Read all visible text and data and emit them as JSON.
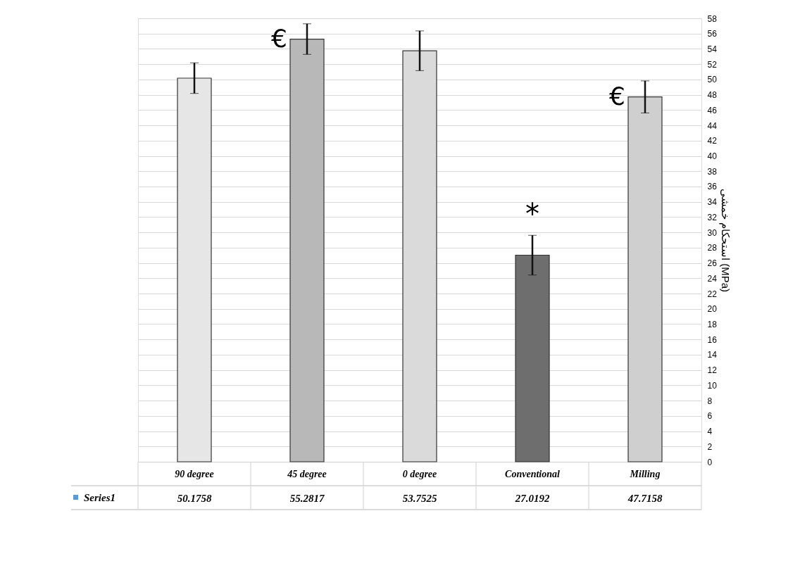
{
  "chart_data": {
    "type": "bar",
    "ylabel": "استحکام خمشی (MPa)",
    "categories": [
      "90 degree",
      "45 degree",
      "0 degree",
      "Conventional",
      "Milling"
    ],
    "series": [
      {
        "name": "Series1",
        "color": "#5b9bd5",
        "colors": [
          "#e6e6e6",
          "#b8b8b8",
          "#dadada",
          "#6e6e6e",
          "#cfcfcf"
        ],
        "values": [
          50.1758,
          55.2817,
          53.7525,
          27.0192,
          47.7158
        ],
        "errors": [
          2.0,
          2.0,
          2.6,
          2.6,
          2.1
        ]
      }
    ],
    "ylim": [
      0,
      58
    ],
    "yticks": [
      0,
      2,
      4,
      6,
      8,
      10,
      12,
      14,
      16,
      18,
      20,
      22,
      24,
      26,
      28,
      30,
      32,
      34,
      36,
      38,
      40,
      42,
      44,
      46,
      48,
      50,
      52,
      54,
      56,
      58
    ],
    "annotations": [
      {
        "text": "€",
        "x": "45 degree",
        "y": 55.2817
      },
      {
        "text": "€",
        "x": "Milling",
        "y": 47.7158
      },
      {
        "text": "*",
        "x": "Conventional",
        "y": 29.6
      }
    ],
    "grid": "y",
    "legend": "bottom",
    "data_labels": true
  }
}
